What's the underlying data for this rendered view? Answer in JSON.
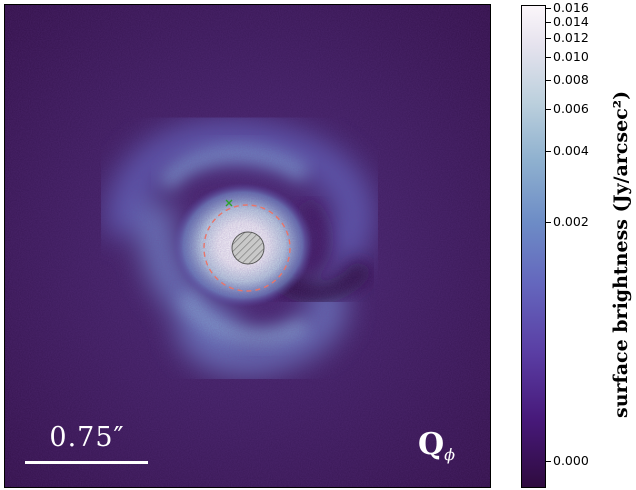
{
  "scalebar": {
    "label": "0.75″"
  },
  "stokes": {
    "label": "Q",
    "subscript": "ϕ"
  },
  "colorbar": {
    "title": "surface brightness (Jy/arcsec²)",
    "ticks": [
      {
        "value": 0.016,
        "label": "0.016"
      },
      {
        "value": 0.014,
        "label": "0.014"
      },
      {
        "value": 0.012,
        "label": "0.012"
      },
      {
        "value": 0.01,
        "label": "0.010"
      },
      {
        "value": 0.008,
        "label": "0.008"
      },
      {
        "value": 0.006,
        "label": "0.006"
      },
      {
        "value": 0.004,
        "label": "0.004"
      },
      {
        "value": 0.002,
        "label": "0.002"
      },
      {
        "value": 0.0,
        "label": "0.000"
      }
    ],
    "colors": {
      "top": "#fbf6fa",
      "mid": "#6d8cc6",
      "bottom": "#2f0b3f"
    }
  },
  "markers": {
    "point_marker_color": "#2ca02c",
    "circle_color": "#e8756b",
    "mask_fill": "#bdbdbd"
  }
}
